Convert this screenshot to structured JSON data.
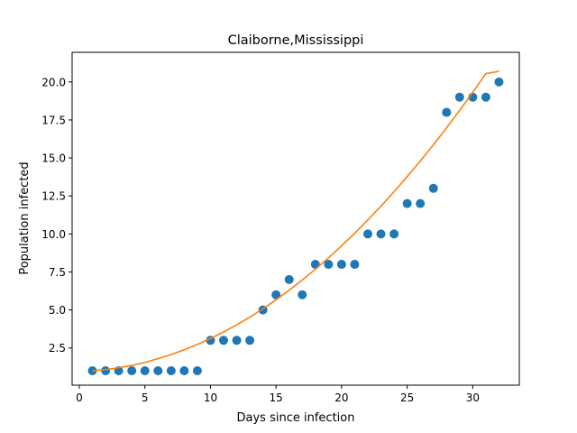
{
  "chart_data": {
    "type": "scatter",
    "title": "Claiborne,Mississippi",
    "xlabel": "Days since infection",
    "ylabel": "Population infected",
    "xlim": [
      -0.55,
      33.55
    ],
    "ylim": [
      0.05,
      21.95
    ],
    "xticks": [
      0,
      5,
      10,
      15,
      20,
      25,
      30
    ],
    "xtick_labels": [
      "0",
      "5",
      "10",
      "15",
      "20",
      "25",
      "30"
    ],
    "yticks": [
      2.5,
      5.0,
      7.5,
      10.0,
      12.5,
      15.0,
      17.5,
      20.0
    ],
    "ytick_labels": [
      "2.5",
      "5.0",
      "7.5",
      "10.0",
      "12.5",
      "15.0",
      "17.5",
      "20.0"
    ],
    "grid": false,
    "series": [
      {
        "type": "scatter",
        "color": "#1f77b4",
        "x": [
          1,
          2,
          3,
          4,
          5,
          6,
          7,
          8,
          9,
          10,
          11,
          12,
          13,
          14,
          15,
          16,
          17,
          18,
          19,
          20,
          21,
          22,
          23,
          24,
          25,
          26,
          27,
          28,
          29,
          30,
          31,
          32
        ],
        "y": [
          1,
          1,
          1,
          1,
          1,
          1,
          1,
          1,
          1,
          3,
          3,
          3,
          3,
          5,
          6,
          7,
          6,
          8,
          8,
          8,
          8,
          10,
          10,
          10,
          12,
          12,
          13,
          18,
          19,
          19,
          19,
          20
        ]
      },
      {
        "type": "line",
        "color": "#ff7f0e",
        "x": [
          1,
          2,
          3,
          4,
          5,
          6,
          7,
          8,
          9,
          10,
          11,
          12,
          13,
          14,
          15,
          16,
          17,
          18,
          19,
          20,
          21,
          22,
          23,
          24,
          25,
          26,
          27,
          28,
          29,
          30,
          31,
          32
        ],
        "y": [
          1.0,
          1.08,
          1.2,
          1.35,
          1.55,
          1.8,
          2.07,
          2.38,
          2.73,
          3.12,
          3.55,
          4.02,
          4.53,
          5.08,
          5.67,
          6.3,
          6.97,
          7.68,
          8.43,
          9.22,
          10.05,
          10.92,
          11.83,
          12.78,
          13.77,
          14.8,
          15.87,
          16.98,
          18.13,
          19.32,
          20.55,
          20.7
        ]
      }
    ]
  }
}
